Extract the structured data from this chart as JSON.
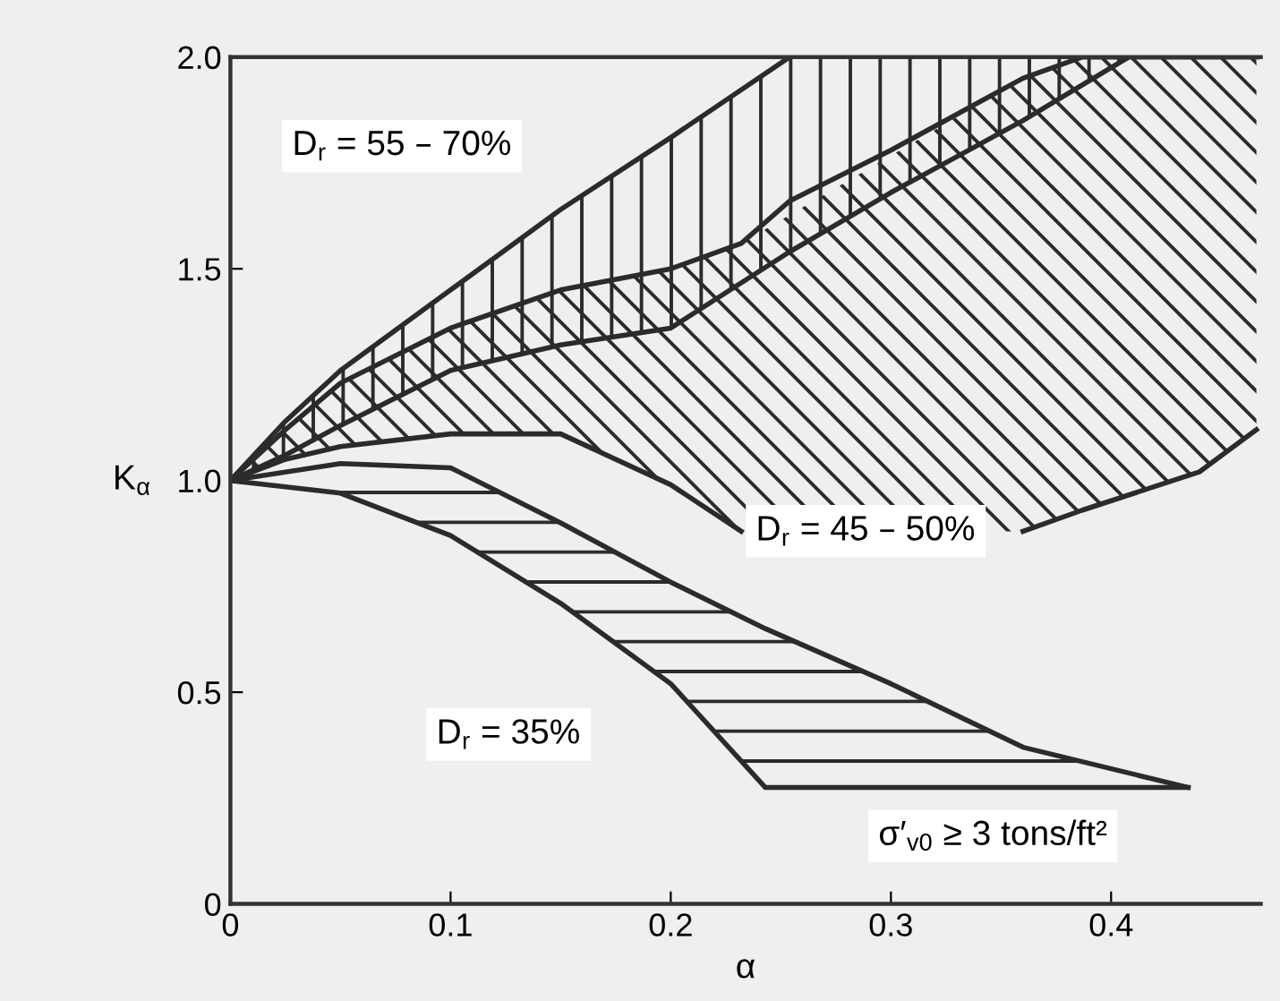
{
  "chart_data": {
    "type": "line",
    "xlabel": "α",
    "ylabel": "K$_{α}$",
    "xlim": [
      0,
      0.468
    ],
    "ylim": [
      0,
      2.0
    ],
    "xticks": [
      0,
      0.1,
      0.2,
      0.3,
      0.4
    ],
    "yticks": [
      0,
      {
        "value": 0.5,
        "label": "0.5"
      },
      {
        "value": 1.0,
        "label": "1.0"
      },
      {
        "value": 1.5,
        "label": "1.5"
      },
      {
        "value": 2.0,
        "label": "2.0"
      }
    ],
    "grid": false,
    "legend": false,
    "marker": "none",
    "line_style": "solid",
    "series": [
      {
        "color": "#2b2b2b",
        "x": [
          0,
          0.025,
          0.05,
          0.1,
          0.15,
          0.2,
          0.254
        ],
        "values": [
          1.0,
          1.14,
          1.26,
          1.45,
          1.64,
          1.81,
          2.0
        ]
      },
      {
        "color": "#2b2b2b",
        "x": [
          0,
          0.025,
          0.05,
          0.1,
          0.15,
          0.2,
          0.254,
          0.3,
          0.36,
          0.408
        ],
        "values": [
          1.0,
          1.06,
          1.13,
          1.26,
          1.32,
          1.36,
          1.54,
          1.68,
          1.85,
          2.0
        ]
      },
      {
        "color": "#2b2b2b",
        "x": [
          0,
          0.025,
          0.05,
          0.1,
          0.15,
          0.2,
          0.232,
          0.254,
          0.3,
          0.36,
          0.387,
          0.44,
          0.466
        ],
        "values": [
          1.0,
          1.12,
          1.23,
          1.36,
          1.45,
          1.5,
          1.56,
          1.66,
          1.78,
          1.95,
          2.0,
          2.0,
          2.0
        ]
      },
      {
        "color": "#2b2b2b",
        "x": [
          0,
          0.025,
          0.05,
          0.1,
          0.15,
          0.2,
          0.232,
          0.254,
          0.3,
          0.36,
          0.387,
          0.44,
          0.466
        ],
        "values": [
          1.0,
          1.05,
          1.08,
          1.11,
          1.11,
          0.99,
          0.88,
          null,
          null,
          0.88,
          0.93,
          1.02,
          1.12
        ]
      },
      {
        "color": "#2b2b2b",
        "x": [
          0,
          0.05,
          0.1,
          0.15,
          0.2,
          0.243,
          0.3,
          0.36,
          0.435
        ],
        "values": [
          1.0,
          1.04,
          1.03,
          0.9,
          0.76,
          0.65,
          0.52,
          0.37,
          0.275
        ]
      },
      {
        "color": "#2b2b2b",
        "x": [
          0,
          0.05,
          0.1,
          0.15,
          0.2,
          0.243,
          0.3,
          0.36,
          0.435
        ],
        "values": [
          1.0,
          0.97,
          0.87,
          0.71,
          0.52,
          0.275,
          0.275,
          0.275,
          0.275
        ]
      }
    ],
    "annotations": [
      "D$_{r}$ = 55 – 70%",
      "D$_{r}$ = 45 – 50%",
      "D$_{r}$ = 35%",
      "σ′$_{v0}$ ≥ 3 tons/ft²"
    ]
  }
}
